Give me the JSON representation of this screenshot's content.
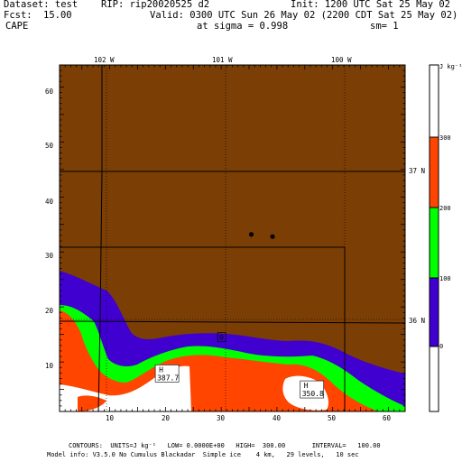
{
  "header": {
    "dataset_label": "Dataset: test",
    "rip_label": "RIP: rip20020525 d2",
    "init_label": "Init: 1200 UTC Sat 25 May 02",
    "fcst_label": "Fcst:",
    "fcst_value": "15.00",
    "valid_label": "Valid: 0300 UTC Sun 26 May 02 (2200 CDT Sat 25 May 02)",
    "field_name": "CAPE",
    "level_label": "at sigma = 0.998",
    "smoothing_label": "sm= 1"
  },
  "map": {
    "longitude_labels": [
      "102 W",
      "101 W",
      "100 W"
    ],
    "latitude_labels": [
      "37 N",
      "36 N"
    ],
    "x_ticks": [
      "10",
      "20",
      "30",
      "40",
      "50",
      "60"
    ],
    "y_ticks": [
      "10",
      "20",
      "30",
      "40",
      "50",
      "60"
    ],
    "x_range": [
      1,
      63
    ],
    "y_range": [
      1,
      64
    ],
    "highs": [
      {
        "marker": "H",
        "value": "387.7",
        "x": 18.5,
        "y": 7.5
      },
      {
        "marker": "H",
        "value": "350.8",
        "x": 44.5,
        "y": 4.6
      }
    ],
    "low": {
      "marker": "0",
      "x": 30,
      "y": 14.5
    },
    "stations": [
      {
        "x": 35.4,
        "y": 33.2
      },
      {
        "x": 39.2,
        "y": 32.8
      }
    ]
  },
  "colorbar": {
    "unit_label": "J kg⁻¹",
    "tick_labels": [
      "300",
      "200",
      "100",
      "0"
    ],
    "colors": {
      "above_300": "#ffffff",
      "200_300": "#ff4500",
      "100_200": "#00ff00",
      "0_100": "#4000d0",
      "below_0": "#ffffff"
    }
  },
  "colors": {
    "background_field": "#7b3e05"
  },
  "footer": {
    "contours_line": "CONTOURS:  UNITS=J kg⁻¹   LOW= 0.0000E+00   HIGH=  300.00       INTERVAL=   100.00",
    "model_info_line": "Model info: V3.5.0 No Cumulus Blackadar  Simple ice    4 km,   29 levels,   10 sec"
  }
}
